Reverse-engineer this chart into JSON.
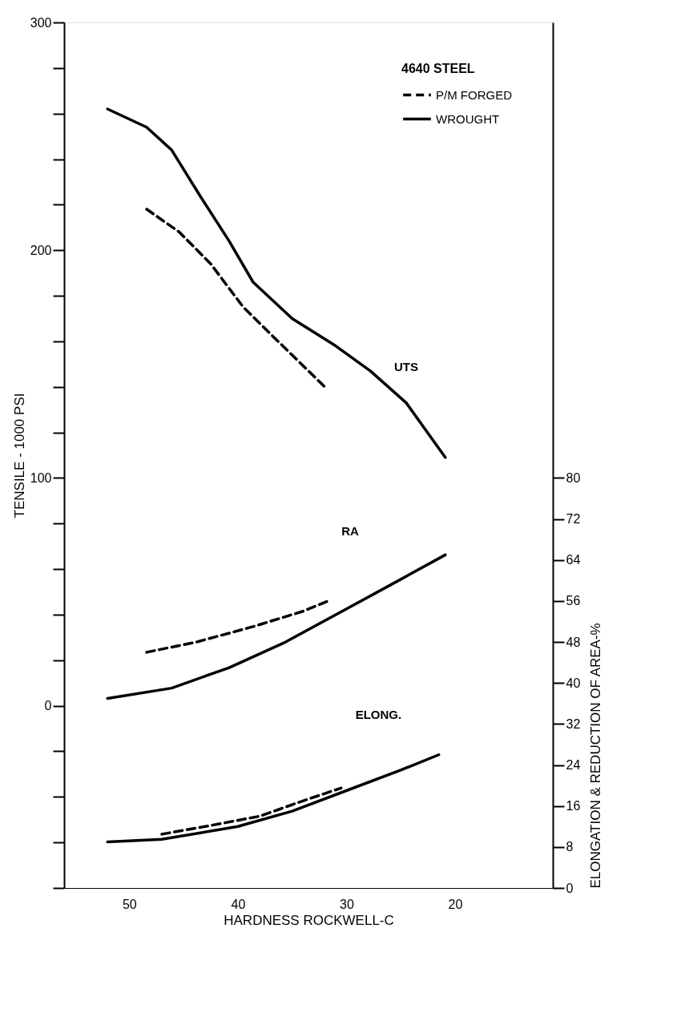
{
  "chart_data": {
    "type": "line",
    "xlabel": "HARDNESS ROCKWELL-C",
    "ylabel": "TENSILE - 1000 PSI",
    "y2label": "ELONGATION & REDUCTION OF AREA-%",
    "legend_title": "4640 STEEL",
    "legend": "top right",
    "grid": false,
    "xlim": [
      56,
      11
    ],
    "xticks": [
      50,
      40,
      30,
      20
    ],
    "ylim": [
      -80,
      300
    ],
    "yticks": [
      {
        "value": -80,
        "label": null
      },
      {
        "value": -60,
        "label": null
      },
      {
        "value": -40,
        "label": null
      },
      {
        "value": -20,
        "label": null
      },
      0,
      {
        "value": 20,
        "label": null
      },
      {
        "value": 40,
        "label": null
      },
      {
        "value": 60,
        "label": null
      },
      {
        "value": 80,
        "label": null
      },
      100,
      {
        "value": 120,
        "label": null
      },
      {
        "value": 140,
        "label": null
      },
      {
        "value": 160,
        "label": null
      },
      {
        "value": 180,
        "label": null
      },
      200,
      {
        "value": 220,
        "label": null
      },
      {
        "value": 240,
        "label": null
      },
      {
        "value": 260,
        "label": null
      },
      {
        "value": 280,
        "label": null
      },
      300
    ],
    "y2lim": [
      0,
      168.9
    ],
    "y2ticks": [
      0,
      8,
      16,
      24,
      32,
      40,
      48,
      56,
      64,
      72,
      80
    ],
    "marker": "none",
    "series": [
      {
        "name": "P/M FORGED",
        "color": "#000000",
        "line_style": "dashed",
        "x": [
          48.4,
          45.4,
          42.5,
          39.5,
          36.3,
          32
        ],
        "values": [
          218,
          208,
          194,
          175,
          160,
          140
        ]
      },
      {
        "name": "WROUGHT",
        "color": "#000000",
        "line_style": "solid",
        "x": [
          52,
          48.4,
          46.1,
          43.5,
          40.8,
          38.6,
          35,
          31,
          27.8,
          24.5,
          20.9
        ],
        "values": [
          262,
          254,
          244,
          224,
          204,
          186,
          170,
          158,
          147,
          133,
          109
        ]
      },
      {
        "color": "#000000",
        "line_style": "dashed",
        "axis": "y2",
        "x": [
          48.4,
          43.8,
          38.6,
          34,
          31.7
        ],
        "values": [
          46,
          48,
          51,
          54,
          56
        ]
      },
      {
        "color": "#000000",
        "line_style": "solid",
        "axis": "y2",
        "x": [
          52,
          46.1,
          40.8,
          35.6,
          30.4,
          25.2,
          20.9
        ],
        "values": [
          37,
          39,
          43,
          48,
          54,
          60,
          65
        ]
      },
      {
        "color": "#000000",
        "line_style": "dashed",
        "axis": "y2",
        "x": [
          47,
          43,
          38,
          34,
          30.5
        ],
        "values": [
          10.5,
          12,
          14,
          17,
          19.5
        ]
      },
      {
        "color": "#000000",
        "line_style": "solid",
        "axis": "y2",
        "x": [
          52,
          47,
          40,
          35,
          30,
          25,
          21.5
        ],
        "values": [
          9,
          9.5,
          12,
          15,
          19,
          23,
          26
        ]
      }
    ],
    "annotations": [
      "UTS",
      "RA",
      "ELONG."
    ]
  }
}
